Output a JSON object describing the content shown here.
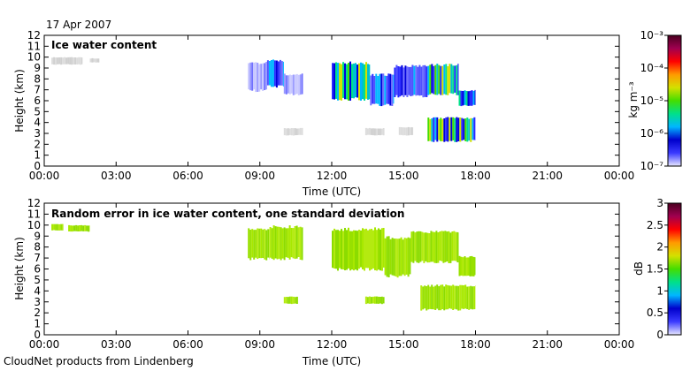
{
  "page": {
    "date": "17 Apr 2007",
    "footer": "CloudNet products from Lindenberg"
  },
  "chart_data": [
    {
      "type": "heatmap",
      "title": "Ice water content",
      "xlabel": "Time (UTC)",
      "ylabel": "Height (km)",
      "x_ticks": [
        "00:00",
        "03:00",
        "06:00",
        "09:00",
        "12:00",
        "15:00",
        "18:00",
        "21:00",
        "00:00"
      ],
      "xlim": [
        0,
        24
      ],
      "y_ticks": [
        "0",
        "1",
        "2",
        "3",
        "4",
        "5",
        "6",
        "7",
        "8",
        "9",
        "10",
        "11",
        "12"
      ],
      "ylim": [
        0,
        12
      ],
      "colorbar": {
        "label": "kg m⁻³",
        "scale": "log",
        "ticks": [
          "10⁻⁷",
          "10⁻⁶",
          "10⁻⁵",
          "10⁻⁴",
          "10⁻³"
        ],
        "colors": [
          "#e8e8ff",
          "#3a3aff",
          "#0000cc",
          "#00b7ff",
          "#00e08a",
          "#44dd00",
          "#d4e000",
          "#ff9a00",
          "#ff0000",
          "#a00050",
          "#4a0020"
        ]
      },
      "regions": [
        {
          "x0": 0.3,
          "x1": 1.6,
          "y0": 9.3,
          "y1": 10.0,
          "level": "grey"
        },
        {
          "x0": 1.9,
          "x1": 2.3,
          "y0": 9.5,
          "y1": 9.9,
          "level": "grey"
        },
        {
          "x0": 8.5,
          "x1": 9.3,
          "y0": 6.8,
          "y1": 9.6,
          "level": "light"
        },
        {
          "x0": 9.3,
          "x1": 10.0,
          "y0": 7.2,
          "y1": 9.8,
          "level": "mid"
        },
        {
          "x0": 10.0,
          "x1": 10.8,
          "y0": 6.5,
          "y1": 8.5,
          "level": "light"
        },
        {
          "x0": 10.0,
          "x1": 10.8,
          "y0": 2.8,
          "y1": 3.5,
          "level": "grey"
        },
        {
          "x0": 12.0,
          "x1": 13.6,
          "y0": 6.0,
          "y1": 9.6,
          "level": "high"
        },
        {
          "x0": 13.6,
          "x1": 14.6,
          "y0": 5.5,
          "y1": 8.5,
          "level": "mid"
        },
        {
          "x0": 14.6,
          "x1": 16.0,
          "y0": 6.3,
          "y1": 9.3,
          "level": "mid"
        },
        {
          "x0": 16.0,
          "x1": 17.3,
          "y0": 6.5,
          "y1": 9.4,
          "level": "high"
        },
        {
          "x0": 17.3,
          "x1": 18.0,
          "y0": 5.5,
          "y1": 7.0,
          "level": "high"
        },
        {
          "x0": 16.0,
          "x1": 18.0,
          "y0": 2.2,
          "y1": 4.5,
          "level": "high"
        },
        {
          "x0": 13.4,
          "x1": 14.2,
          "y0": 2.8,
          "y1": 3.5,
          "level": "grey"
        },
        {
          "x0": 14.8,
          "x1": 15.4,
          "y0": 2.8,
          "y1": 3.6,
          "level": "grey"
        }
      ]
    },
    {
      "type": "heatmap",
      "title": "Random error in ice water content, one standard deviation",
      "xlabel": "Time (UTC)",
      "ylabel": "Height (km)",
      "x_ticks": [
        "00:00",
        "03:00",
        "06:00",
        "09:00",
        "12:00",
        "15:00",
        "18:00",
        "21:00",
        "00:00"
      ],
      "xlim": [
        0,
        24
      ],
      "y_ticks": [
        "0",
        "1",
        "2",
        "3",
        "4",
        "5",
        "6",
        "7",
        "8",
        "9",
        "10",
        "11",
        "12"
      ],
      "ylim": [
        0,
        12
      ],
      "colorbar": {
        "label": "dB",
        "scale": "linear",
        "ticks": [
          "0",
          "0.5",
          "1",
          "1.5",
          "2",
          "2.5",
          "3"
        ],
        "colors": [
          "#e8e8ff",
          "#3a3aff",
          "#0000cc",
          "#00b7ff",
          "#00e08a",
          "#44dd00",
          "#d4e000",
          "#ff9a00",
          "#ff0000",
          "#a00050",
          "#4a0020"
        ]
      },
      "regions": [
        {
          "x0": 0.3,
          "x1": 0.8,
          "y0": 9.5,
          "y1": 10.1,
          "level": "err"
        },
        {
          "x0": 1.0,
          "x1": 1.9,
          "y0": 9.4,
          "y1": 10.0,
          "level": "err"
        },
        {
          "x0": 8.5,
          "x1": 9.4,
          "y0": 6.8,
          "y1": 9.8,
          "level": "err"
        },
        {
          "x0": 9.4,
          "x1": 10.8,
          "y0": 6.8,
          "y1": 10.0,
          "level": "err"
        },
        {
          "x0": 10.0,
          "x1": 10.6,
          "y0": 2.8,
          "y1": 3.5,
          "level": "err"
        },
        {
          "x0": 12.0,
          "x1": 14.2,
          "y0": 5.8,
          "y1": 9.8,
          "level": "err"
        },
        {
          "x0": 14.2,
          "x1": 15.3,
          "y0": 5.2,
          "y1": 9.0,
          "level": "err"
        },
        {
          "x0": 15.3,
          "x1": 17.3,
          "y0": 6.5,
          "y1": 9.5,
          "level": "err"
        },
        {
          "x0": 17.3,
          "x1": 18.0,
          "y0": 5.3,
          "y1": 7.2,
          "level": "err"
        },
        {
          "x0": 13.4,
          "x1": 14.2,
          "y0": 2.8,
          "y1": 3.5,
          "level": "err"
        },
        {
          "x0": 15.7,
          "x1": 18.0,
          "y0": 2.2,
          "y1": 4.6,
          "level": "err"
        }
      ]
    }
  ]
}
